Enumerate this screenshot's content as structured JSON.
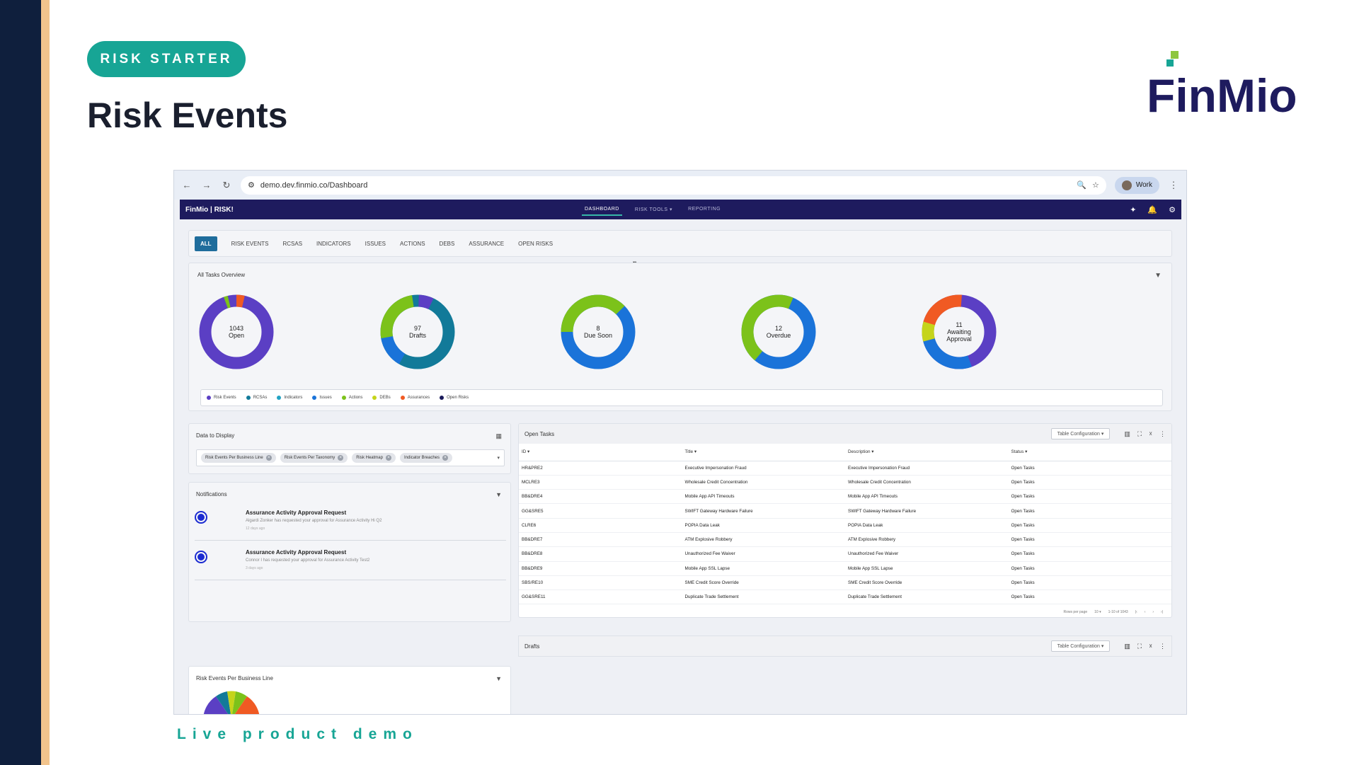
{
  "slide": {
    "badge": "RISK STARTER",
    "title": "Risk Events",
    "footer": "Live product demo",
    "logo_text": "FinMio"
  },
  "browser": {
    "url": "demo.dev.finmio.co/Dashboard",
    "profile": "Work"
  },
  "app": {
    "brand": "FinMio | RISK!",
    "menu": [
      "DASHBOARD",
      "RISK TOOLS",
      "REPORTING"
    ],
    "notification_count": "2"
  },
  "tabs": [
    "ALL",
    "RISK EVENTS",
    "RCSAS",
    "INDICATORS",
    "ISSUES",
    "ACTIONS",
    "DEBS",
    "ASSURANCE",
    "OPEN RISKS"
  ],
  "overview": {
    "title": "All Tasks Overview",
    "donuts": [
      {
        "count": "1043",
        "label": "Open"
      },
      {
        "count": "97",
        "label": "Drafts"
      },
      {
        "count": "8",
        "label": "Due Soon"
      },
      {
        "count": "12",
        "label": "Overdue"
      },
      {
        "count": "11",
        "label": "Awaiting Approval"
      }
    ],
    "legend": [
      {
        "name": "Risk Events",
        "color": "#5b3fc4"
      },
      {
        "name": "RCSAs",
        "color": "#127a99"
      },
      {
        "name": "Indicators",
        "color": "#22a3c3"
      },
      {
        "name": "Issues",
        "color": "#1a73d9"
      },
      {
        "name": "Actions",
        "color": "#7cc21a"
      },
      {
        "name": "DEBs",
        "color": "#c5d41a"
      },
      {
        "name": "Assurances",
        "color": "#f05a23"
      },
      {
        "name": "Open Risks",
        "color": "#1a1a5a"
      }
    ]
  },
  "data_display": {
    "title": "Data to Display",
    "chips": [
      "Risk Events Per Business Line",
      "Risk Events Per Taxonomy",
      "Risk Heatmap",
      "Indicator Breaches"
    ]
  },
  "notifications": {
    "title": "Notifications",
    "items": [
      {
        "heading": "Assurance Activity Approval Request",
        "body": "Algardi Zonker has requested your approval for Assurance Activity Hi Q2",
        "time": "12 days ago"
      },
      {
        "heading": "Assurance Activity Approval Request",
        "body": "Connor I has requested your approval for Assurance Activity Test2",
        "time": "3 days ago"
      }
    ]
  },
  "business_line": {
    "title": "Risk Events Per Business Line"
  },
  "open_tasks": {
    "title": "Open Tasks",
    "config_label": "Table Configuration",
    "columns": [
      "ID",
      "Title",
      "Description",
      "Status"
    ],
    "rows": [
      [
        "HR&PRE2",
        "Executive Impersonation Fraud",
        "Executive Impersonation Fraud",
        "Open Tasks"
      ],
      [
        "MCLRE3",
        "Wholesale Credit Concentration",
        "Wholesale Credit Concentration",
        "Open Tasks"
      ],
      [
        "BB&DRE4",
        "Mobile App API Timeouts",
        "Mobile App API Timeouts",
        "Open Tasks"
      ],
      [
        "GG&SRE5",
        "SWIFT Gateway Hardware Failure",
        "SWIFT Gateway Hardware Failure",
        "Open Tasks"
      ],
      [
        "CLRE6",
        "POPIA Data Leak",
        "POPIA Data Leak",
        "Open Tasks"
      ],
      [
        "BB&DRE7",
        "ATM Explosive Robbery",
        "ATM Explosive Robbery",
        "Open Tasks"
      ],
      [
        "BB&DRE8",
        "Unauthorized Fee Waiver",
        "Unauthorized Fee Waiver",
        "Open Tasks"
      ],
      [
        "BB&DRE9",
        "Mobile App SSL Lapse",
        "Mobile App SSL Lapse",
        "Open Tasks"
      ],
      [
        "SBS/RE10",
        "SME Credit Score Override",
        "SME Credit Score Override",
        "Open Tasks"
      ],
      [
        "GG&SRE11",
        "Duplicate Trade Settlement",
        "Duplicate Trade Settlement",
        "Open Tasks"
      ]
    ],
    "pager": {
      "rows_per_page_label": "Rows per page",
      "rows_per_page": "10",
      "range": "1-10 of 1043"
    }
  },
  "drafts": {
    "title": "Drafts",
    "config_label": "Table Configuration"
  }
}
